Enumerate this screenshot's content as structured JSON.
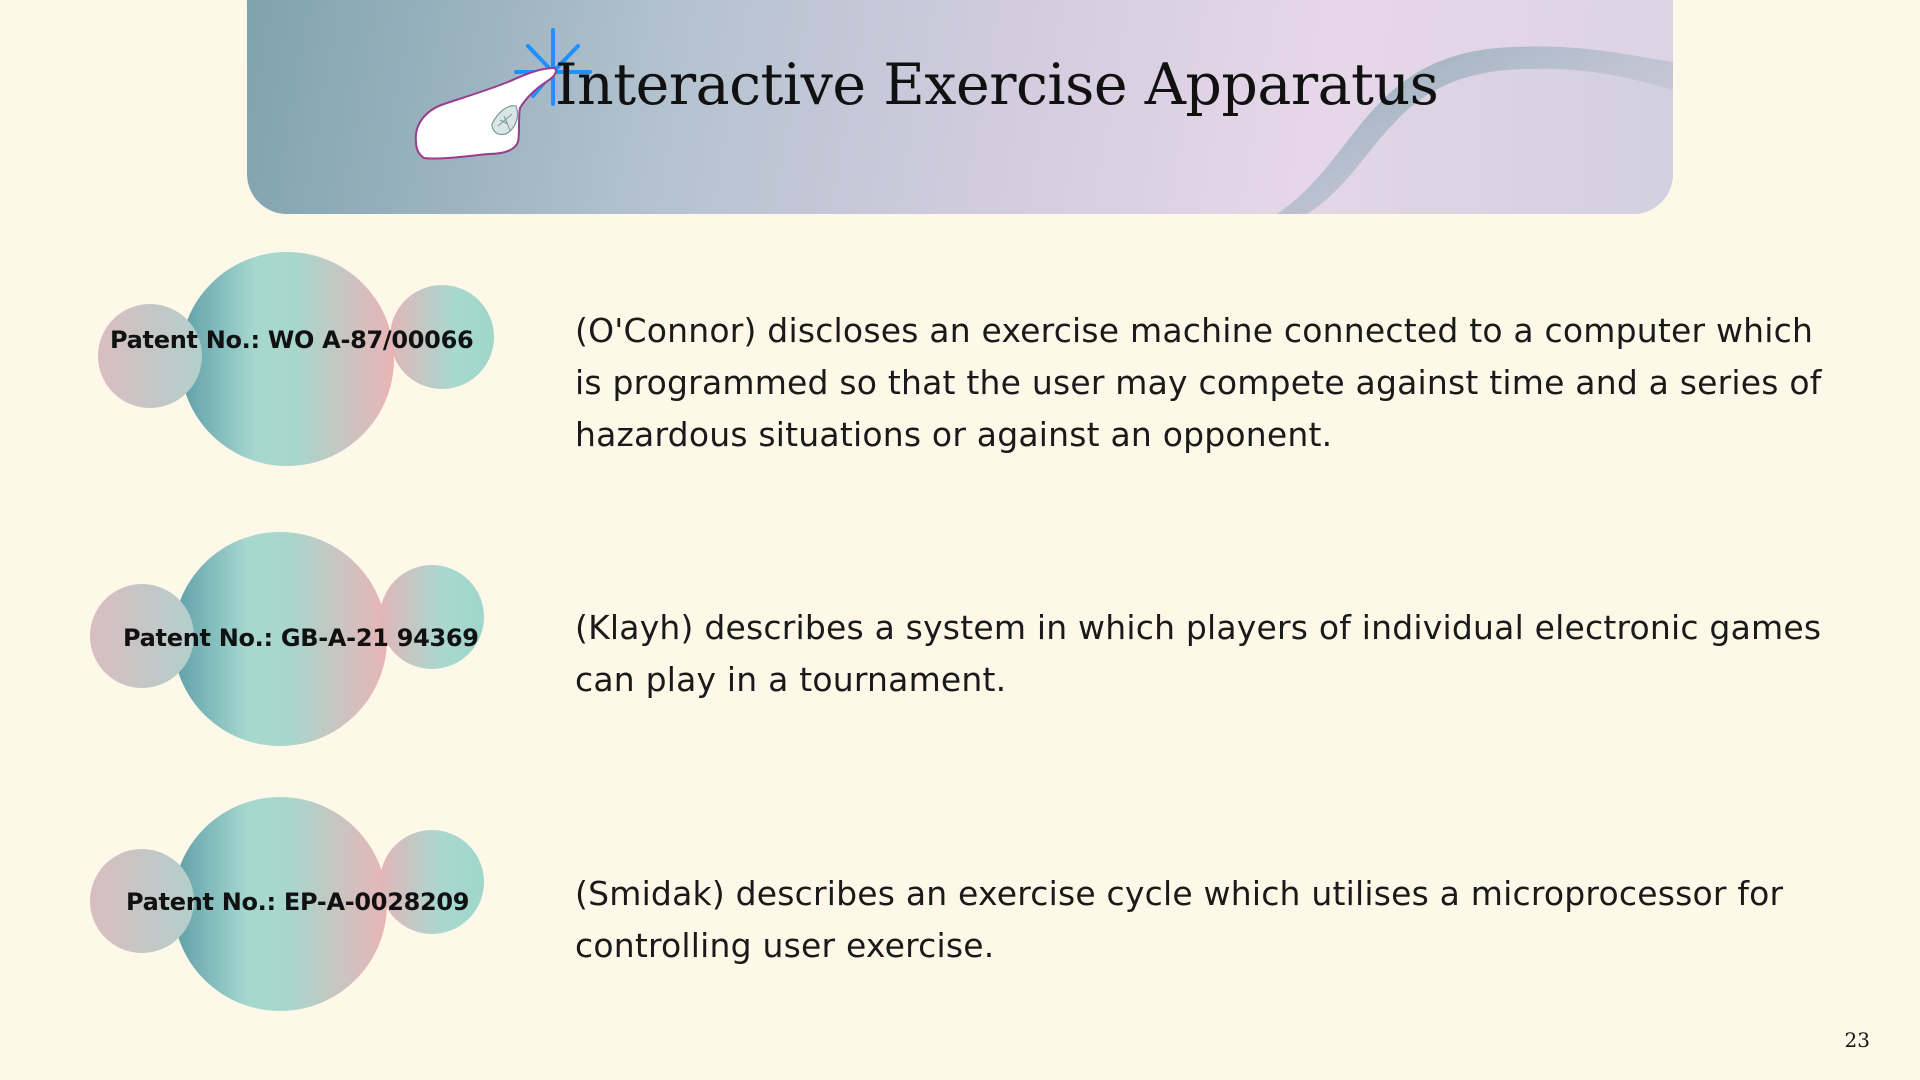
{
  "slide": {
    "title": "Interactive Exercise Apparatus",
    "page_number": "23"
  },
  "patents": [
    {
      "number": "Patent No.: WO  A-87/00066",
      "description": "(O'Connor) discloses an exercise machine connected to a computer which is programmed so that the user may compete against time and a series of hazardous situations or against an opponent."
    },
    {
      "number": "Patent No.: GB-A-21 94369",
      "description": "(Klayh) describes a system in which players of individual electronic games can play in a tournament."
    },
    {
      "number": "Patent No.: EP-A-0028209",
      "description": "(Smidak) describes an exercise cycle which utilises a microprocessor for controlling user exercise."
    }
  ],
  "icons": {
    "header": "pointing-hand-icon"
  },
  "colors": {
    "background": "#fdf8e8",
    "accent_blue": "#1e90ff",
    "banner_teal": "#7fa3ae",
    "banner_lilac": "#e6d7e8"
  }
}
